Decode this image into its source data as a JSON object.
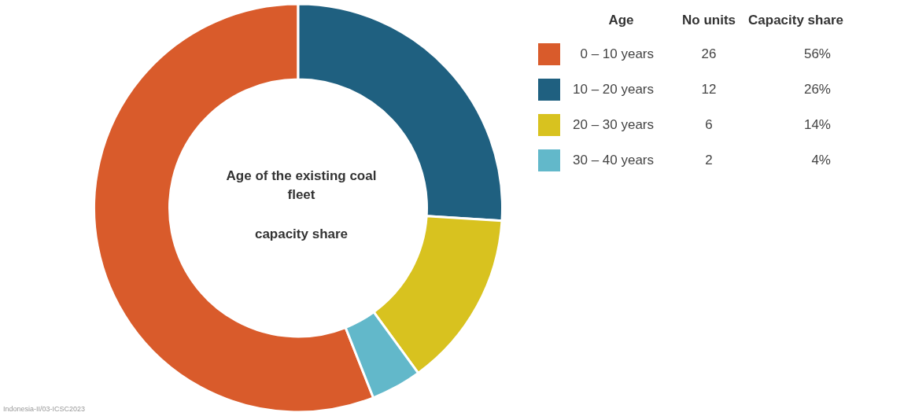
{
  "chart_data": {
    "type": "donut",
    "title": "Age of the existing coal fleet",
    "subtitle": "capacity share",
    "legend_title": "Age",
    "categories": [
      "0 – 10 years",
      "10 – 20 years",
      "20 – 30 years",
      "30 – 40 years"
    ],
    "values": [
      56,
      26,
      14,
      4
    ],
    "colors": [
      "#d95b2b",
      "#1f6080",
      "#d8c21f",
      "#62b8ca"
    ],
    "value_labels": [
      "56%",
      "26%",
      "14%",
      "4%"
    ],
    "legend": "right",
    "annotations": [
      "No units",
      "26",
      "12",
      "6",
      "2",
      "Capacity share",
      "Indonesia-II/03-ICSC2023"
    ]
  }
}
